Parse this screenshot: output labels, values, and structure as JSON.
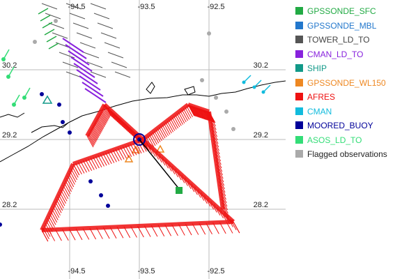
{
  "map": {
    "lon_ticks_top": [
      "-94.5",
      "-93.5",
      "-92.5"
    ],
    "lon_ticks_bottom": [
      "-94.5",
      "-93.5",
      "-92.5"
    ],
    "lat_ticks_left": [
      "30.2",
      "29.2",
      "28.2"
    ],
    "lat_ticks_right": [
      "30.2",
      "29.2",
      "28.2"
    ],
    "gridline_color": "#bbbbbb",
    "coastline_color": "#000000"
  },
  "legend": {
    "items": [
      {
        "label": "GPSSONDE_SFC",
        "color": "#22aa44",
        "text_color": "#22aa44"
      },
      {
        "label": "GPSSONDE_MBL",
        "color": "#2277cc",
        "text_color": "#2277cc"
      },
      {
        "label": "TOWER_LD_TO",
        "color": "#555555",
        "text_color": "#444444"
      },
      {
        "label": "CMAN_LD_TO",
        "color": "#8822dd",
        "text_color": "#8822dd"
      },
      {
        "label": "SHIP",
        "color": "#119988",
        "text_color": "#119988"
      },
      {
        "label": "GPSSONDE_WL150",
        "color": "#ee8822",
        "text_color": "#ee8822"
      },
      {
        "label": "AFRES",
        "color": "#ee1111",
        "text_color": "#ee1111"
      },
      {
        "label": "CMAN",
        "color": "#11bbdd",
        "text_color": "#11bbdd"
      },
      {
        "label": "MOORED_BUOY",
        "color": "#000099",
        "text_color": "#000099"
      },
      {
        "label": "ASOS_LD_TO",
        "color": "#33dd77",
        "text_color": "#33dd77"
      },
      {
        "label": "Flagged observations",
        "color": "#aaaaaa",
        "text_color": "#222222"
      }
    ]
  }
}
